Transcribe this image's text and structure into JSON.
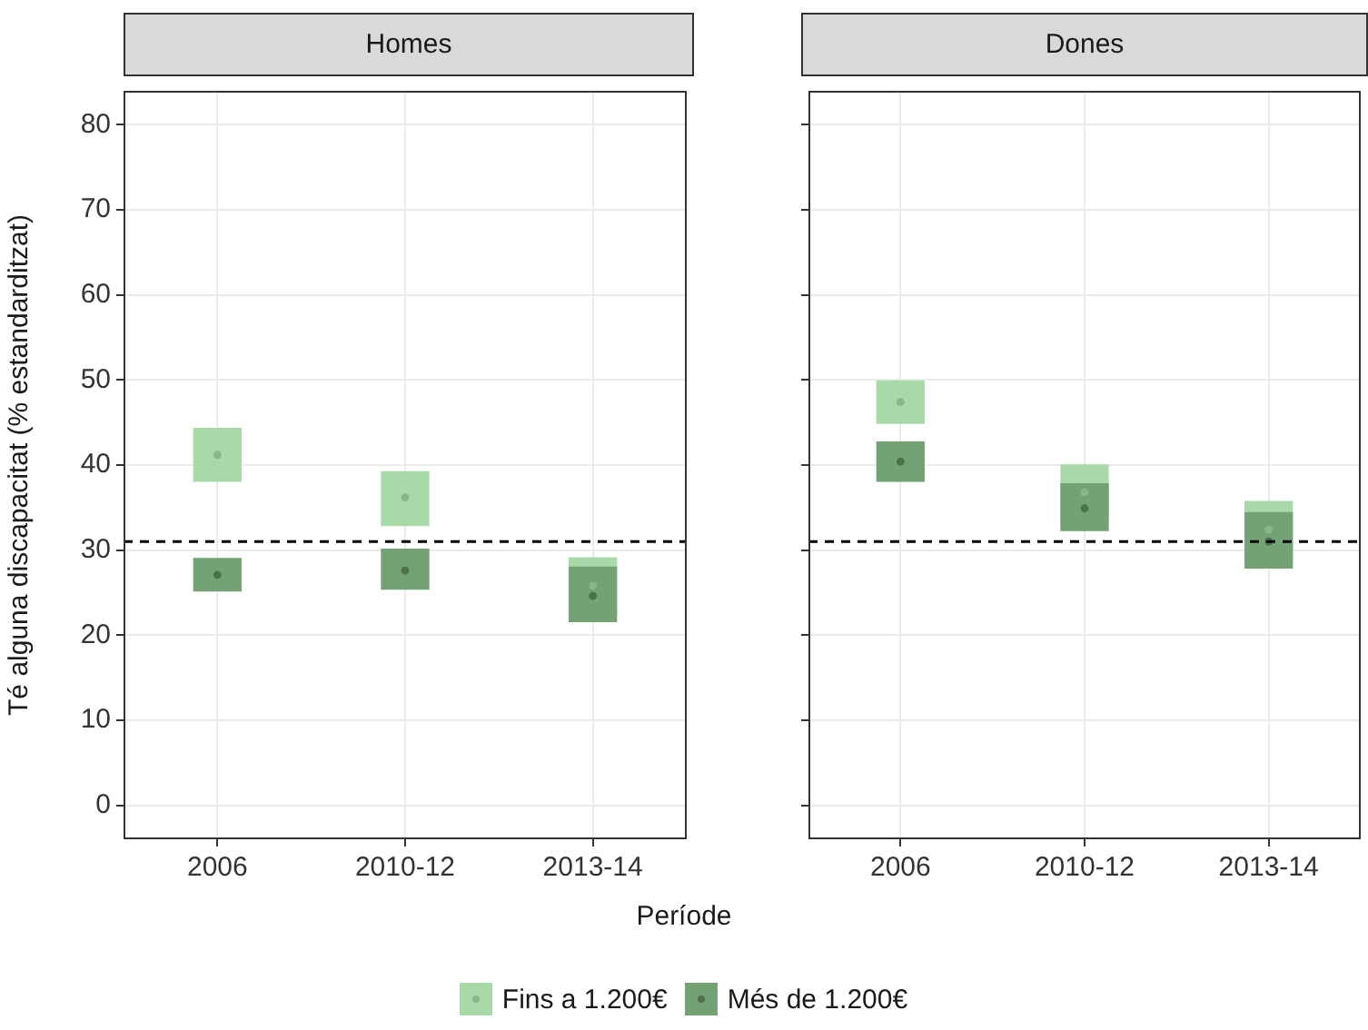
{
  "chart_data": [
    {
      "type": "bar",
      "title": "Homes",
      "ylabel": "Té alguna discapacitat (% estandarditzat)",
      "xlabel": "Període",
      "categories": [
        "2006",
        "2010-12",
        "2013-14"
      ],
      "ylim": [
        -4,
        84
      ],
      "yticks": [
        0,
        10,
        20,
        30,
        40,
        50,
        60,
        70,
        80
      ],
      "grid": true,
      "legend": "bottom",
      "marker": "circle",
      "ref_lines": [
        {
          "axis": "y",
          "value": 31,
          "line_style": "dashed",
          "color": "#000000"
        }
      ],
      "series": [
        {
          "name": "Fins a 1.200€",
          "color": "#a8daa9",
          "base": [
            38.1,
            32.9,
            22.5
          ],
          "values": [
            6.2,
            6.3,
            6.6
          ]
        },
        {
          "name": "Més de 1.200€",
          "color": "#73a275",
          "base": [
            25.2,
            25.4,
            21.6
          ],
          "values": [
            3.8,
            4.7,
            6.4
          ]
        },
        {
          "type": "scatter",
          "color": "#86b888",
          "values": [
            41.2,
            36.2,
            25.8
          ]
        },
        {
          "type": "scatter",
          "color": "#4b724d",
          "values": [
            27.1,
            27.6,
            24.6
          ]
        }
      ]
    },
    {
      "type": "bar",
      "title": "Dones",
      "categories": [
        "2006",
        "2010-12",
        "2013-14"
      ],
      "ylim": [
        -4,
        84
      ],
      "yticks": [
        0,
        10,
        20,
        30,
        40,
        50,
        60,
        70,
        80
      ],
      "grid": true,
      "tick_labels": "x",
      "marker": "circle",
      "ref_lines": [
        {
          "axis": "y",
          "value": 31,
          "line_style": "dashed",
          "color": "#000000"
        }
      ],
      "series": [
        {
          "color": "#a8daa9",
          "base": [
            44.9,
            33.5,
            29.0
          ],
          "values": [
            5.0,
            6.5,
            6.7
          ]
        },
        {
          "color": "#73a275",
          "base": [
            38.1,
            32.3,
            27.9
          ],
          "values": [
            4.6,
            5.5,
            6.5
          ]
        },
        {
          "type": "scatter",
          "color": "#86b888",
          "values": [
            47.4,
            36.8,
            32.4
          ]
        },
        {
          "type": "scatter",
          "color": "#4b724d",
          "values": [
            40.4,
            34.9,
            31.0
          ]
        }
      ]
    }
  ]
}
